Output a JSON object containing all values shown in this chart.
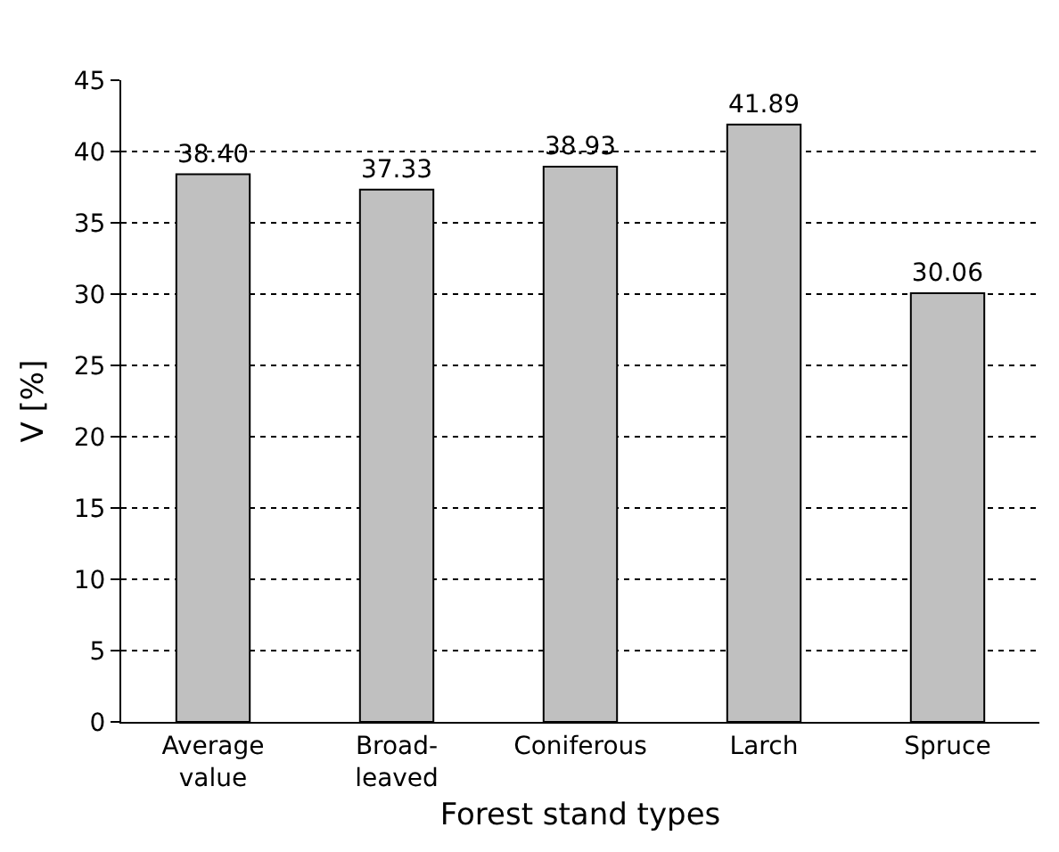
{
  "chart_data": {
    "type": "bar",
    "xlabel": "Forest stand types",
    "ylabel": "V [%]",
    "categories": [
      "Average value",
      "Broad-leaved",
      "Coniferous",
      "Larch",
      "Spruce"
    ],
    "values": [
      38.4,
      37.33,
      38.93,
      41.89,
      30.06
    ],
    "value_labels": [
      "38.40",
      "37.33",
      "38.93",
      "41.89",
      "30.06"
    ],
    "color": "#c0c0c0",
    "ylim": [
      0,
      45
    ],
    "yticks": [
      0,
      5,
      10,
      15,
      20,
      25,
      30,
      35,
      40,
      45
    ],
    "grid": "y",
    "legend": false
  }
}
